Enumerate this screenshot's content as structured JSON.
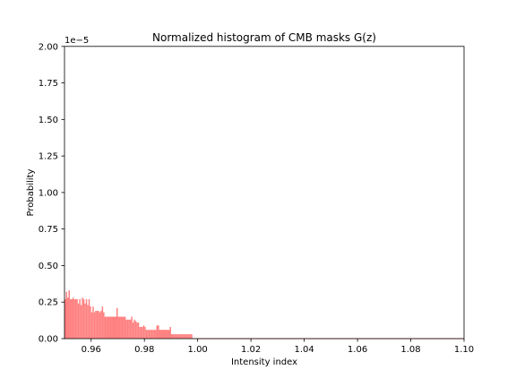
{
  "chart_data": {
    "type": "bar",
    "title": "Normalized histogram of CMB masks G(z)",
    "xlabel": "Intensity index",
    "ylabel": "Probability",
    "y_offset_label": "1e−5",
    "xlim": [
      0.95,
      1.1
    ],
    "ylim": [
      0.0,
      2.0
    ],
    "y_scale_factor": 1e-05,
    "x_ticks": [
      0.96,
      0.98,
      1.0,
      1.02,
      1.04,
      1.06,
      1.08,
      1.1
    ],
    "x_tick_labels": [
      "0.96",
      "0.98",
      "1.00",
      "1.02",
      "1.04",
      "1.06",
      "1.08",
      "1.10"
    ],
    "y_ticks": [
      0.0,
      0.25,
      0.5,
      0.75,
      1.0,
      1.25,
      1.5,
      1.75,
      2.0
    ],
    "y_tick_labels": [
      "0.00",
      "0.25",
      "0.50",
      "0.75",
      "1.00",
      "1.25",
      "1.50",
      "1.75",
      "2.00"
    ],
    "grid": false,
    "bar_color": "#ff8080",
    "bin_width": 0.0005,
    "x": [
      0.95,
      0.9505,
      0.951,
      0.9515,
      0.952,
      0.9525,
      0.953,
      0.9535,
      0.954,
      0.9545,
      0.955,
      0.9555,
      0.956,
      0.9565,
      0.957,
      0.9575,
      0.958,
      0.9585,
      0.959,
      0.9595,
      0.96,
      0.9605,
      0.961,
      0.9615,
      0.962,
      0.9625,
      0.963,
      0.9635,
      0.964,
      0.9645,
      0.965,
      0.9655,
      0.966,
      0.9665,
      0.967,
      0.9675,
      0.968,
      0.9685,
      0.969,
      0.9695,
      0.97,
      0.9705,
      0.971,
      0.9715,
      0.972,
      0.9725,
      0.973,
      0.9735,
      0.974,
      0.9745,
      0.975,
      0.9755,
      0.976,
      0.9765,
      0.977,
      0.9775,
      0.978,
      0.9785,
      0.979,
      0.9795,
      0.98,
      0.9805,
      0.981,
      0.9815,
      0.982,
      0.9825,
      0.983,
      0.9835,
      0.984,
      0.9845,
      0.985,
      0.9855,
      0.986,
      0.9865,
      0.987,
      0.9875,
      0.988,
      0.9885,
      0.989,
      0.9895,
      0.99,
      0.9905,
      0.991,
      0.9915,
      0.992,
      0.9925,
      0.993,
      0.9935,
      0.994,
      0.9945,
      0.995,
      0.9955,
      0.996,
      0.9965,
      0.997,
      0.9975
    ],
    "values": [
      0.27,
      0.32,
      0.28,
      0.33,
      0.27,
      0.27,
      0.28,
      0.27,
      0.27,
      0.27,
      0.24,
      0.27,
      0.23,
      0.28,
      0.27,
      0.24,
      0.27,
      0.23,
      0.27,
      0.22,
      0.18,
      0.22,
      0.18,
      0.19,
      0.19,
      0.19,
      0.18,
      0.19,
      0.22,
      0.18,
      0.15,
      0.15,
      0.15,
      0.15,
      0.15,
      0.15,
      0.15,
      0.15,
      0.15,
      0.21,
      0.15,
      0.15,
      0.15,
      0.15,
      0.15,
      0.15,
      0.13,
      0.13,
      0.13,
      0.13,
      0.15,
      0.11,
      0.13,
      0.12,
      0.11,
      0.11,
      0.08,
      0.08,
      0.08,
      0.09,
      0.08,
      0.06,
      0.06,
      0.06,
      0.06,
      0.06,
      0.06,
      0.06,
      0.06,
      0.09,
      0.09,
      0.06,
      0.06,
      0.06,
      0.06,
      0.06,
      0.06,
      0.06,
      0.06,
      0.08,
      0.03,
      0.03,
      0.03,
      0.03,
      0.03,
      0.03,
      0.03,
      0.03,
      0.03,
      0.03,
      0.03,
      0.03,
      0.03,
      0.03,
      0.03,
      0.03
    ],
    "baseline": {
      "x_start": 0.9975,
      "x_end": 1.1,
      "value": 0.003
    }
  }
}
